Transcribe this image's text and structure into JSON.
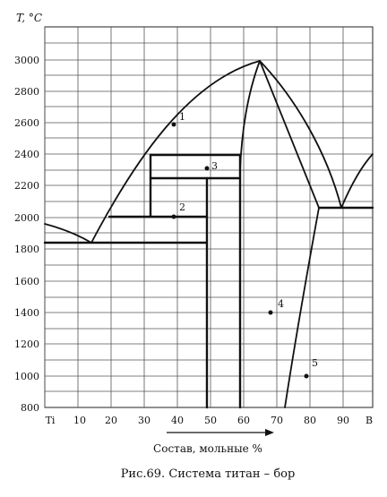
{
  "diagram": {
    "y_axis_label": "T, °C",
    "x_axis_label": "Состав,  мольные %",
    "caption": "Рис.69. Система титан – бор",
    "x_ticks": [
      "Ti",
      "10",
      "20",
      "30",
      "40",
      "50",
      "60",
      "70",
      "80",
      "90",
      "B"
    ],
    "y_ticks": [
      "3000",
      "2800",
      "2600",
      "2400",
      "2200",
      "2000",
      "1800",
      "1600",
      "1400",
      "1200",
      "1000",
      "800"
    ],
    "points": [
      "1",
      "2",
      "3",
      "4",
      "5"
    ],
    "x_range": [
      0,
      100
    ],
    "y_range": [
      800,
      3200
    ]
  }
}
